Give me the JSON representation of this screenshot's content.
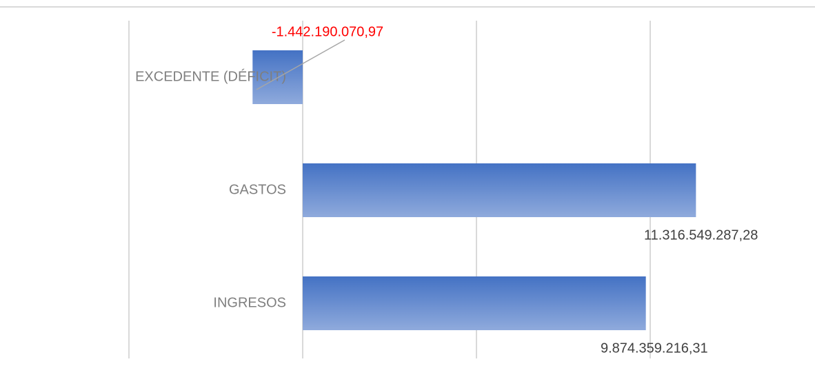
{
  "chart_data": {
    "type": "bar",
    "orientation": "horizontal",
    "categories": [
      "EXCEDENTE (DÉFICIT)",
      "GASTOS",
      "INGRESOS"
    ],
    "values": [
      -1442190070.97,
      11316549287.28,
      9874359216.31
    ],
    "value_labels": [
      "-1.442.190.070,97",
      "11.316.549.287,28",
      "9.874.359.216,31"
    ],
    "color": "#4472c4",
    "color_light": "#8faadc",
    "label_color": "#404040",
    "negative_label_color": "#ff0000",
    "xlim": [
      -5000000000,
      10000000000
    ],
    "xticks": [
      -5000000000,
      0,
      5000000000,
      10000000000
    ],
    "grid": true
  }
}
